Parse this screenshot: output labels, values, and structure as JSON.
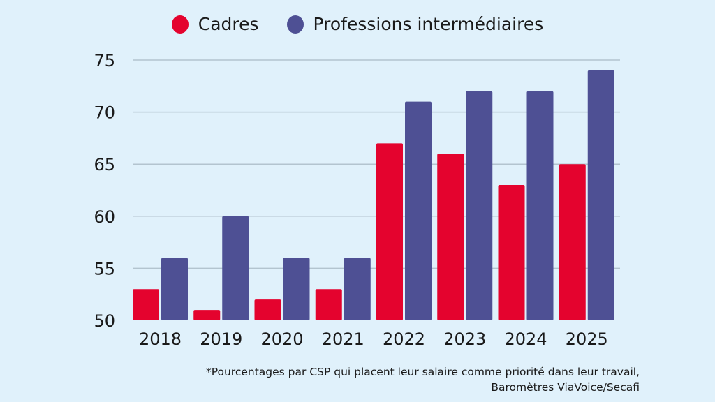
{
  "chart_data": {
    "type": "bar",
    "title": "",
    "xlabel": "",
    "ylabel": "",
    "categories": [
      "2018",
      "2019",
      "2020",
      "2021",
      "2022",
      "2023",
      "2024",
      "2025"
    ],
    "series": [
      {
        "name": "Cadres",
        "color": "#e4032e",
        "values": [
          53,
          51,
          52,
          53,
          67,
          66,
          63,
          65
        ]
      },
      {
        "name": "Professions intermédiaires",
        "color": "#4e5094",
        "values": [
          56,
          60,
          56,
          56,
          71,
          72,
          72,
          74
        ]
      }
    ],
    "ylim": [
      50,
      75
    ],
    "yticks": [
      50,
      55,
      60,
      65,
      70,
      75
    ],
    "grid": true,
    "legend_position": "top-center",
    "gridline_color": "#b3c4cf"
  },
  "legend": {
    "items": [
      {
        "label": "Cadres",
        "color": "#e4032e"
      },
      {
        "label": "Professions intermédiaires",
        "color": "#4e5094"
      }
    ]
  },
  "footnote": {
    "line1": "*Pourcentages par CSP qui placent leur salaire comme priorité dans leur travail,",
    "line2": "Baromètres ViaVoice/Secafi"
  }
}
